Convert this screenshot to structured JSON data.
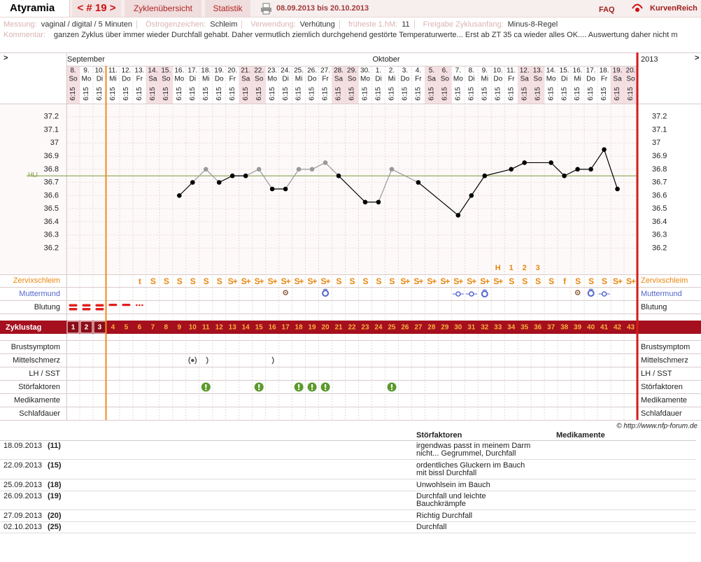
{
  "header": {
    "user": "Atyramia",
    "cycle": "< # 19 >",
    "tabs": [
      "Zyklenübersicht",
      "Statistik"
    ],
    "range": "08.09.2013 bis 20.10.2013",
    "faq": "FAQ",
    "logo": "KurvenReich"
  },
  "info": [
    {
      "label": "Messung:",
      "value": "vaginal / digital / 5 Minuten"
    },
    {
      "label": "Östrogenzeichen:",
      "value": "Schleim"
    },
    {
      "label": "Verwendung:",
      "value": "Verhütung"
    },
    {
      "label": "früheste 1.hM:",
      "value": 11
    },
    {
      "label": "Freigabe Zyklusanfang:",
      "value": "Minus-8-Regel"
    }
  ],
  "comment": {
    "label": "Kommentar:",
    "text": "ganzen Zyklus über immer wieder Durchfall gehabt. Daher vermutlich ziemlich durchgehend gestörte Temperaturwerte... Erst ab ZT 35 ca wieder alles OK.... Auswertung daher nicht m"
  },
  "chart_data": {
    "type": "line",
    "nav": ">",
    "months": [
      "September",
      "Oktober"
    ],
    "year": "2013",
    "dates": [
      "8.",
      "9.",
      "10.",
      "11.",
      "12.",
      "13.",
      "14.",
      "15.",
      "16.",
      "17.",
      "18.",
      "19.",
      "20.",
      "21.",
      "22.",
      "23.",
      "24.",
      "25.",
      "26.",
      "27.",
      "28.",
      "29.",
      "30.",
      "1.",
      "2.",
      "3.",
      "4.",
      "5.",
      "6.",
      "7.",
      "8.",
      "9.",
      "10.",
      "11.",
      "12.",
      "13.",
      "14.",
      "15.",
      "16.",
      "17.",
      "18.",
      "19.",
      "20."
    ],
    "weekdays": [
      "So",
      "Mo",
      "Di",
      "Mi",
      "Do",
      "Fr",
      "Sa",
      "So",
      "Mo",
      "Di",
      "Mi",
      "Do",
      "Fr",
      "Sa",
      "So",
      "Mo",
      "Di",
      "Mi",
      "Do",
      "Fr",
      "Sa",
      "So",
      "Mo",
      "Di",
      "Mi",
      "Do",
      "Fr",
      "Sa",
      "So",
      "Mo",
      "Di",
      "Mi",
      "Do",
      "Fr",
      "Sa",
      "So",
      "Mo",
      "Di",
      "Mi",
      "Do",
      "Fr",
      "Sa",
      "So"
    ],
    "time": "6:15",
    "categories": [
      1,
      2,
      3,
      4,
      5,
      6,
      7,
      8,
      9,
      10,
      11,
      12,
      13,
      14,
      15,
      16,
      17,
      18,
      19,
      20,
      21,
      22,
      23,
      24,
      25,
      26,
      27,
      28,
      29,
      30,
      31,
      32,
      33,
      34,
      35,
      36,
      37,
      38,
      39,
      40,
      41,
      42,
      43
    ],
    "cycle_label": "Zyklustag",
    "values": [
      null,
      null,
      null,
      null,
      null,
      null,
      null,
      null,
      36.6,
      36.7,
      36.8,
      36.7,
      36.75,
      36.75,
      36.8,
      36.65,
      36.65,
      36.8,
      36.8,
      36.85,
      36.75,
      null,
      36.55,
      36.55,
      36.8,
      null,
      36.7,
      null,
      null,
      36.45,
      36.6,
      36.75,
      null,
      36.8,
      36.85,
      null,
      36.85,
      36.75,
      36.8,
      36.8,
      36.95,
      36.65,
      null
    ],
    "point_colors": [
      null,
      null,
      null,
      null,
      null,
      null,
      null,
      null,
      "#000",
      "#000",
      "#999",
      "#000",
      "#000",
      "#000",
      "#999",
      "#000",
      "#000",
      "#999",
      "#999",
      "#999",
      "#000",
      null,
      "#000",
      "#000",
      "#999",
      null,
      "#000",
      null,
      null,
      "#000",
      "#000",
      "#000",
      null,
      "#000",
      "#000",
      null,
      "#000",
      "#000",
      "#000",
      "#000",
      "#000",
      "#000",
      null
    ],
    "ylim": [
      36.0,
      37.3
    ],
    "yticks": [
      36.2,
      36.3,
      36.4,
      36.5,
      36.6,
      36.7,
      36.8,
      36.9,
      37,
      37.1,
      37.2
    ],
    "grid": true,
    "hli": {
      "label": "HLI",
      "value": 36.75,
      "color": "#7a9a3a"
    },
    "peak_marks": [
      null,
      null,
      null,
      null,
      null,
      null,
      null,
      null,
      null,
      null,
      null,
      null,
      null,
      null,
      null,
      null,
      null,
      null,
      null,
      null,
      null,
      null,
      null,
      null,
      null,
      null,
      null,
      null,
      null,
      null,
      null,
      null,
      "H",
      "1",
      "2",
      "3",
      null,
      null,
      null,
      null,
      null,
      null,
      null
    ],
    "mucus": [
      null,
      null,
      null,
      null,
      null,
      "t",
      "S",
      "S",
      "S",
      "S",
      "S",
      "S",
      "S+",
      "S+",
      "S+",
      "S+",
      "S+",
      "S+",
      "S+",
      "S+",
      "S",
      "S",
      "S",
      "S",
      "S",
      "S+",
      "S+",
      "S+",
      "S+",
      "S+",
      "S+",
      "S+",
      "S+",
      "S",
      "S",
      "S",
      "S",
      "f",
      "S",
      "S",
      "S",
      "S+",
      "S+"
    ],
    "rows": [
      {
        "label": "Zervixschleim",
        "color": "#e8870f"
      },
      {
        "label": "Muttermund",
        "color": "#5566cc"
      },
      {
        "label": "Blutung",
        "color": "#222222"
      }
    ],
    "symptom_rows": [
      "Brustsymptom",
      "Mittelschmerz",
      "LH / SST",
      "Störfaktoren",
      "Medikamente",
      "Schlafdauer"
    ]
  },
  "copyright": "© http://www.nfp-forum.de",
  "notes": {
    "headers": [
      "Störfaktoren",
      "Medikamente"
    ],
    "rows": [
      {
        "date": "18.09.2013",
        "day": "(11)",
        "lines": [
          "irgendwas passt in meinem Darm",
          "nicht... Gegrummel, Durchfall"
        ]
      },
      {
        "date": "22.09.2013",
        "day": "(15)",
        "lines": [
          "ordentliches Gluckern im Bauch",
          "mit bissl Durchfall"
        ]
      },
      {
        "date": "25.09.2013",
        "day": "(18)",
        "lines": [
          "Unwohlsein im Bauch"
        ]
      },
      {
        "date": "26.09.2013",
        "day": "(19)",
        "lines": [
          "Durchfall und leichte",
          "Bauchkrämpfe"
        ]
      },
      {
        "date": "27.09.2013",
        "day": "(20)",
        "lines": [
          "Richtig Durchfall"
        ]
      },
      {
        "date": "02.10.2013",
        "day": "(25)",
        "lines": [
          "Durchfall"
        ]
      }
    ]
  }
}
